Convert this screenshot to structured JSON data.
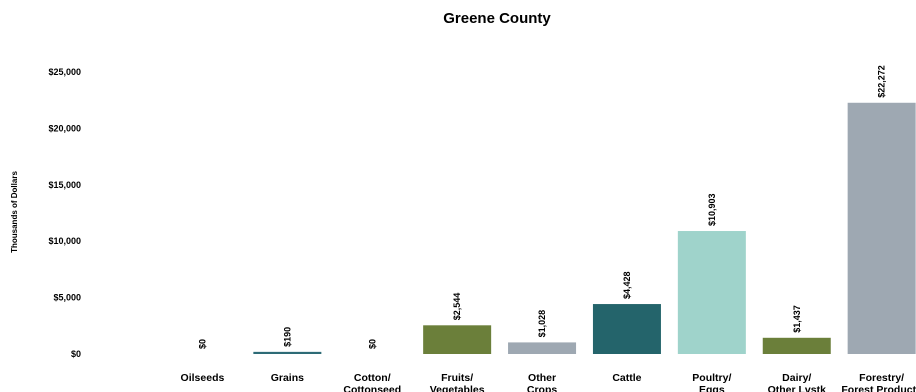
{
  "chart_data": {
    "type": "bar",
    "title": "Greene County",
    "ylabel": "Thousands of Dollars",
    "xlabel": "",
    "ylim": [
      0,
      25000
    ],
    "yticks": [
      0,
      5000,
      10000,
      15000,
      20000,
      25000
    ],
    "ytick_labels": [
      "$0",
      "$5,000",
      "$10,000",
      "$15,000",
      "$20,000",
      "$25,000"
    ],
    "grid": false,
    "legend": "none",
    "categories": [
      [
        "Oilseeds"
      ],
      [
        "Grains"
      ],
      [
        "Cotton/",
        "Cottonseed"
      ],
      [
        "Fruits/",
        "Vegetables"
      ],
      [
        "Other",
        "Crops"
      ],
      [
        "Cattle"
      ],
      [
        "Poultry/",
        "Eggs"
      ],
      [
        "Dairy/",
        "Other Lvstk"
      ],
      [
        "Forestry/",
        "Forest Products"
      ]
    ],
    "values": [
      0,
      190,
      0,
      2544,
      1028,
      4428,
      10903,
      1437,
      22272
    ],
    "value_labels": [
      "$0",
      "$190",
      "$0",
      "$2,544",
      "$1,028",
      "$4,428",
      "$10,903",
      "$1,437",
      "$22,272"
    ],
    "colors": [
      "#2d6b76",
      "#2d6b76",
      "#2d6b76",
      "#6b7f3a",
      "#9ea8b2",
      "#24646b",
      "#9fd3cb",
      "#6b7f3a",
      "#9ea8b2"
    ]
  }
}
